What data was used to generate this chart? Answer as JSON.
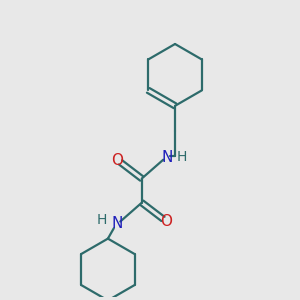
{
  "bg_color": "#e8e8e8",
  "bond_color": "#2d6b6b",
  "N_color": "#2020bb",
  "O_color": "#cc2020",
  "line_width": 1.6,
  "font_size": 11,
  "fig_size": [
    3.0,
    3.0
  ],
  "dpi": 100,
  "xlim": [
    0,
    10
  ],
  "ylim": [
    0,
    10
  ]
}
